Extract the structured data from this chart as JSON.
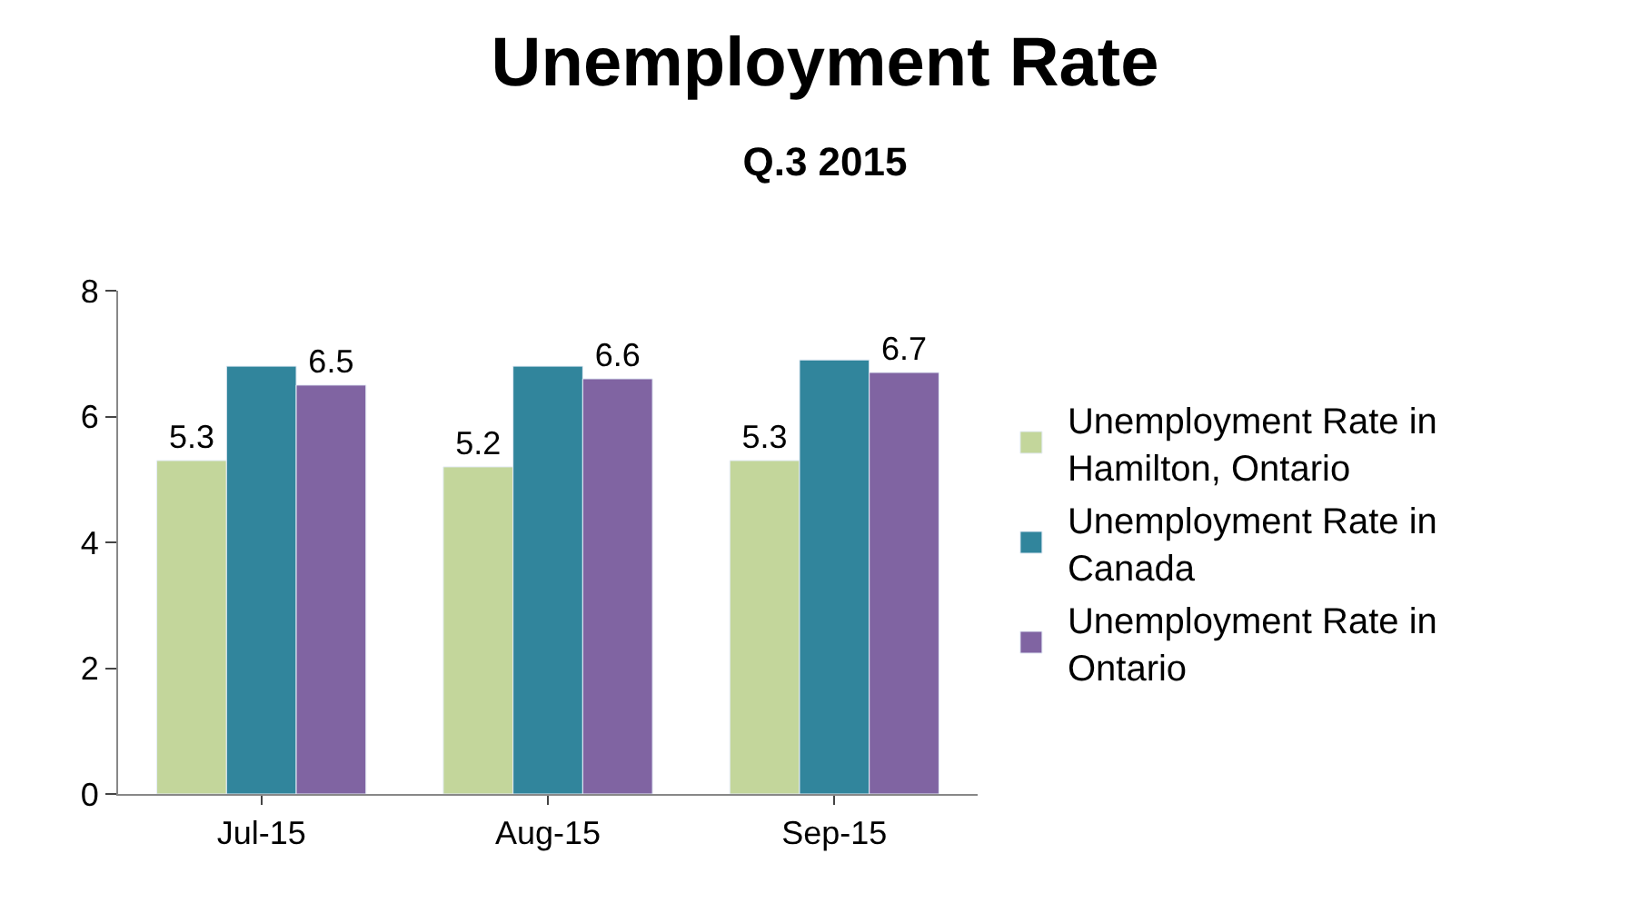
{
  "chart_data": {
    "type": "bar",
    "title": "Unemployment Rate",
    "subtitle": "Q.3 2015",
    "categories": [
      "Jul-15",
      "Aug-15",
      "Sep-15"
    ],
    "series": [
      {
        "name": "Unemployment Rate in Hamilton, Ontario",
        "color": "#c3d69b",
        "values": [
          5.3,
          5.2,
          5.3
        ],
        "value_labels": [
          "5.3",
          "5.2",
          "5.3"
        ]
      },
      {
        "name": "Unemployment Rate in Canada",
        "color": "#31859c",
        "values": [
          6.8,
          6.8,
          6.9
        ]
      },
      {
        "name": "Unemployment Rate in Ontario",
        "color": "#8064a2",
        "values": [
          6.5,
          6.6,
          6.7
        ],
        "value_labels": [
          "6.5",
          "6.6",
          "6.7"
        ]
      }
    ],
    "ylim": [
      0,
      8
    ],
    "yticks": [
      0,
      2,
      4,
      6,
      8
    ],
    "legend": "right"
  }
}
